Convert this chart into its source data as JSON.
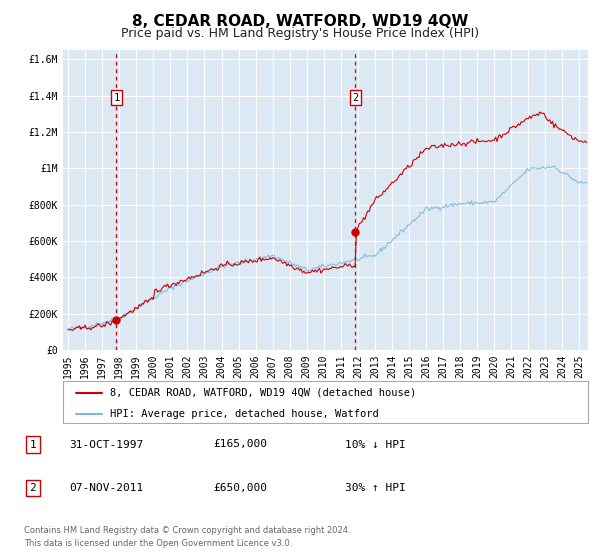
{
  "title": "8, CEDAR ROAD, WATFORD, WD19 4QW",
  "subtitle": "Price paid vs. HM Land Registry's House Price Index (HPI)",
  "background_color": "#ffffff",
  "plot_bg_color": "#dce9f5",
  "grid_color": "#ffffff",
  "ylim": [
    0,
    1650000
  ],
  "yticks": [
    0,
    200000,
    400000,
    600000,
    800000,
    1000000,
    1200000,
    1400000,
    1600000
  ],
  "ytick_labels": [
    "£0",
    "£200K",
    "£400K",
    "£600K",
    "£800K",
    "£1M",
    "£1.2M",
    "£1.4M",
    "£1.6M"
  ],
  "xlim_start": 1994.7,
  "xlim_end": 2025.5,
  "xtick_years": [
    1995,
    1996,
    1997,
    1998,
    1999,
    2000,
    2001,
    2002,
    2003,
    2004,
    2005,
    2006,
    2007,
    2008,
    2009,
    2010,
    2011,
    2012,
    2013,
    2014,
    2015,
    2016,
    2017,
    2018,
    2019,
    2020,
    2021,
    2022,
    2023,
    2024,
    2025
  ],
  "sale1_x": 1997.83,
  "sale1_y": 165000,
  "sale2_x": 2011.85,
  "sale2_y": 650000,
  "red_line_color": "#cc0000",
  "blue_line_color": "#7ab8d9",
  "dot_color": "#cc0000",
  "vline_color": "#cc0000",
  "legend_label_red": "8, CEDAR ROAD, WATFORD, WD19 4QW (detached house)",
  "legend_label_blue": "HPI: Average price, detached house, Watford",
  "table_row1_num": "1",
  "table_row1_date": "31-OCT-1997",
  "table_row1_price": "£165,000",
  "table_row1_hpi": "10% ↓ HPI",
  "table_row2_num": "2",
  "table_row2_date": "07-NOV-2011",
  "table_row2_price": "£650,000",
  "table_row2_hpi": "30% ↑ HPI",
  "footer1": "Contains HM Land Registry data © Crown copyright and database right 2024.",
  "footer2": "This data is licensed under the Open Government Licence v3.0.",
  "title_fontsize": 11,
  "subtitle_fontsize": 9,
  "tick_fontsize": 7,
  "legend_fontsize": 7.5,
  "table_fontsize": 8,
  "footer_fontsize": 6
}
